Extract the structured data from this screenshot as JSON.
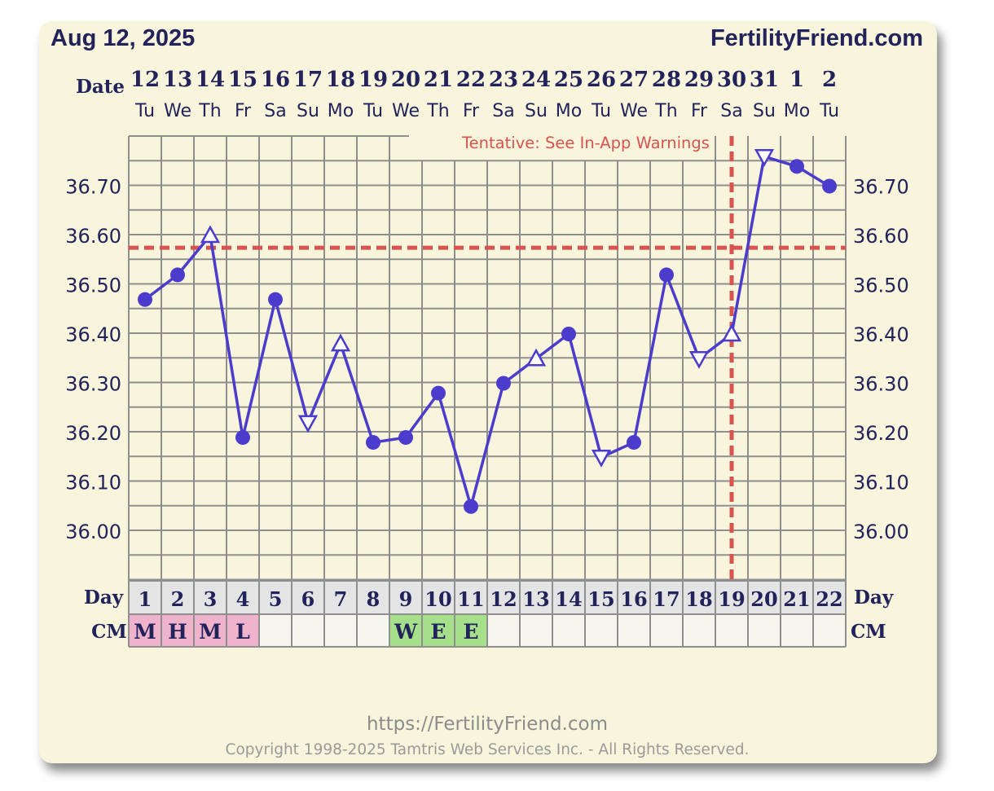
{
  "header": {
    "chart_date": "Aug 12, 2025",
    "brand": "FertilityFriend.com"
  },
  "labels": {
    "date": "Date",
    "day": "Day",
    "cm": "CM",
    "tentative": "Tentative: See In-App Warnings"
  },
  "footer": {
    "url": "https://FertilityFriend.com",
    "copyright": "Copyright 1998-2025 Tamtris Web Services Inc. - All Rights Reserved."
  },
  "colors": {
    "card_bg": "#f8f5dc",
    "grid": "#8f8f8f",
    "temp_line": "#4b3ccc",
    "coverline": "#d9534f",
    "cm_pink": "#f0b3cc",
    "cm_green": "#a6e08a",
    "day_cell": "#e4e4e4",
    "cm_cell": "#f6f6ee"
  },
  "chart_data": {
    "type": "line",
    "title": "",
    "xlabel": "Day",
    "ylabel": "",
    "ylim": [
      35.92,
      36.8
    ],
    "y_ticks": [
      "36.00",
      "36.10",
      "36.20",
      "36.30",
      "36.40",
      "36.50",
      "36.60",
      "36.70"
    ],
    "dates": [
      "12",
      "13",
      "14",
      "15",
      "16",
      "17",
      "18",
      "19",
      "20",
      "21",
      "22",
      "23",
      "24",
      "25",
      "26",
      "27",
      "28",
      "29",
      "30",
      "31",
      "1",
      "2"
    ],
    "weekdays": [
      "Tu",
      "We",
      "Th",
      "Fr",
      "Sa",
      "Su",
      "Mo",
      "Tu",
      "We",
      "Th",
      "Fr",
      "Sa",
      "Su",
      "Mo",
      "Tu",
      "We",
      "Th",
      "Fr",
      "Sa",
      "Su",
      "Mo",
      "Tu"
    ],
    "days": [
      "1",
      "2",
      "3",
      "4",
      "5",
      "6",
      "7",
      "8",
      "9",
      "10",
      "11",
      "12",
      "13",
      "14",
      "15",
      "16",
      "17",
      "18",
      "19",
      "20",
      "21",
      "22"
    ],
    "temperatures": [
      36.47,
      36.52,
      36.6,
      36.19,
      36.47,
      36.22,
      36.38,
      36.18,
      36.19,
      36.28,
      36.05,
      36.3,
      36.35,
      36.4,
      36.15,
      36.18,
      36.52,
      36.35,
      36.4,
      36.76,
      36.74,
      36.7
    ],
    "markers": [
      "dot",
      "dot",
      "tri-up",
      "dot",
      "dot",
      "tri-down",
      "tri-up",
      "dot",
      "dot",
      "dot",
      "dot",
      "dot",
      "tri-up",
      "dot",
      "tri-down",
      "dot",
      "dot",
      "tri-down",
      "tri-up",
      "tri-down",
      "dot",
      "dot"
    ],
    "coverline": 36.575,
    "ovulation_day": 19,
    "cervical_mucus": [
      "M",
      "H",
      "M",
      "L",
      "",
      "",
      "",
      "",
      "W",
      "E",
      "E",
      "",
      "",
      "",
      "",
      "",
      "",
      "",
      "",
      "",
      "",
      ""
    ],
    "cm_types": [
      "pink",
      "pink",
      "pink",
      "pink",
      "",
      "",
      "",
      "",
      "green",
      "green",
      "green",
      "",
      "",
      "",
      "",
      "",
      "",
      "",
      "",
      "",
      "",
      ""
    ]
  }
}
